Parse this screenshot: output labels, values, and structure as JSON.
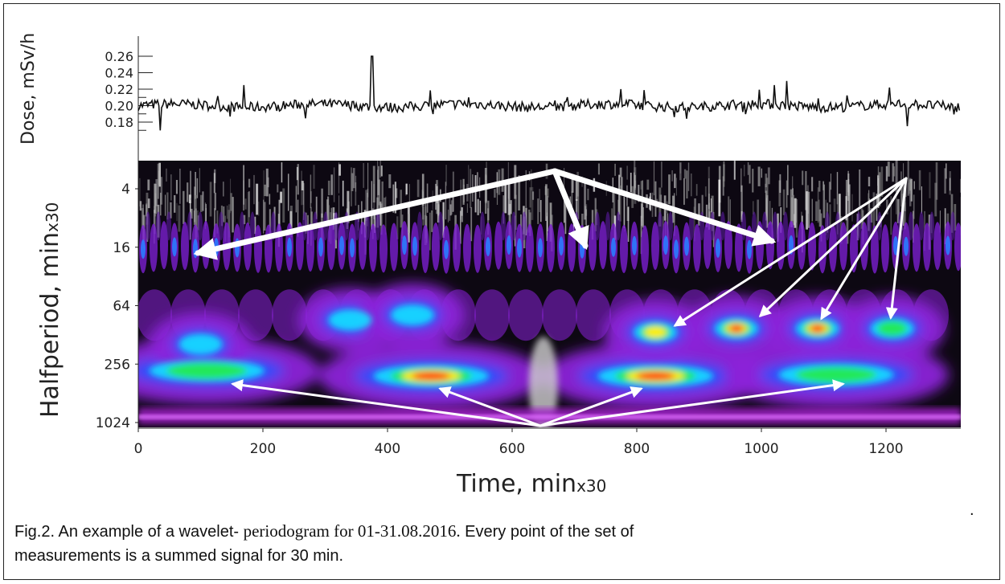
{
  "chart_data": [
    {
      "type": "line",
      "ylabel": "Dose, mSv/h",
      "yticks": [
        "0.26",
        "0.24",
        "0.22",
        "0.20",
        "0.18"
      ],
      "ylim": [
        0.16,
        0.27
      ],
      "xlim": [
        0,
        1320
      ],
      "series_summary": {
        "baseline": 0.2,
        "spikes": [
          {
            "x": 36,
            "y": 0.17
          },
          {
            "x": 170,
            "y": 0.225
          },
          {
            "x": 375,
            "y": 0.26
          },
          {
            "x": 530,
            "y": 0.21
          },
          {
            "x": 775,
            "y": 0.22
          },
          {
            "x": 1020,
            "y": 0.225
          },
          {
            "x": 1040,
            "y": 0.23
          },
          {
            "x": 1205,
            "y": 0.222
          },
          {
            "x": 1235,
            "y": 0.175
          }
        ]
      }
    },
    {
      "type": "heatmap",
      "xlabel_main": "Time, min",
      "xlabel_sub": "x30",
      "ylabel_main": "Halfperiod, min",
      "ylabel_sub": "x30",
      "xticks": [
        "0",
        "200",
        "400",
        "600",
        "800",
        "1000",
        "1200"
      ],
      "yticks": [
        "4",
        "16",
        "64",
        "256",
        "1024"
      ],
      "ylog": true,
      "blobs": [
        {
          "x": 110,
          "period": 300,
          "level": "green"
        },
        {
          "x": 100,
          "period": 160,
          "level": "cyan"
        },
        {
          "x": 470,
          "period": 340,
          "level": "red"
        },
        {
          "x": 830,
          "period": 340,
          "level": "red"
        },
        {
          "x": 1120,
          "period": 330,
          "level": "green"
        },
        {
          "x": 830,
          "period": 120,
          "level": "yellow"
        },
        {
          "x": 960,
          "period": 110,
          "level": "red"
        },
        {
          "x": 1090,
          "period": 110,
          "level": "red"
        },
        {
          "x": 1210,
          "period": 110,
          "level": "green"
        },
        {
          "x": 340,
          "period": 90,
          "level": "cyan"
        },
        {
          "x": 440,
          "period": 80,
          "level": "cyan"
        }
      ],
      "annotations": "white arrows pointing to features at ~16 and ~128-300 halfperiods"
    }
  ],
  "caption": {
    "line1a": "Fig.2. An example of a wavelet- ",
    "line1b": "periodogram for 01-31.08.2016.",
    "line1c": "  Every point of the set of",
    "line2": "measurements is a summed signal for 30 min."
  },
  "trailing_mark": "."
}
